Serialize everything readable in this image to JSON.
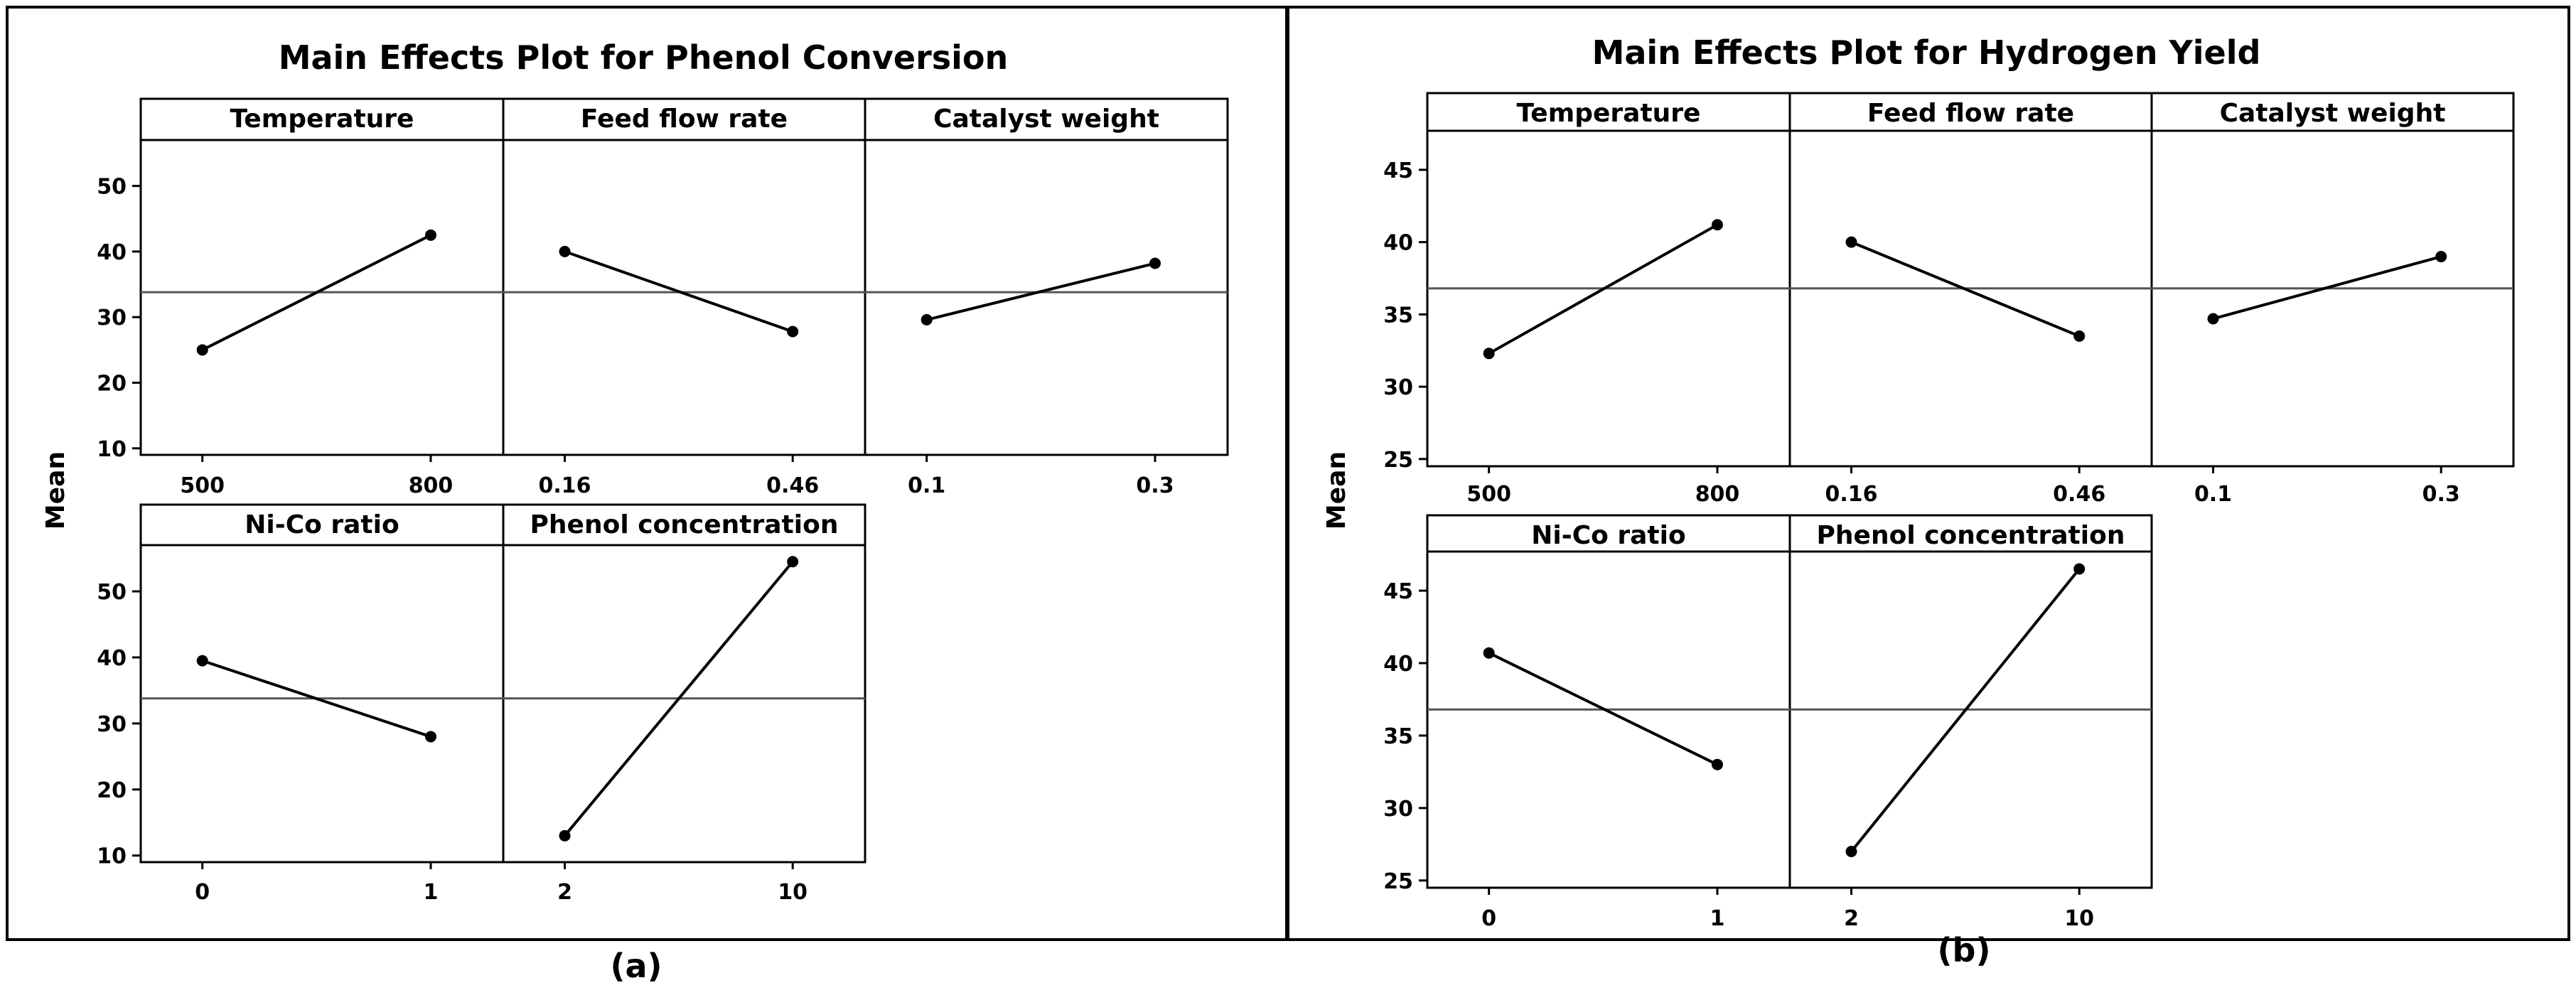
{
  "chart_data": [
    {
      "type": "line",
      "title": "Main Effects Plot for Phenol Conversion",
      "ylabel": "Mean",
      "caption": "(a)",
      "ylim": [
        9,
        57
      ],
      "yticks": [
        10,
        20,
        30,
        40,
        50
      ],
      "overall_mean": 33.8,
      "panels": [
        {
          "title": "Temperature",
          "x_labels": [
            "500",
            "800"
          ],
          "values": [
            25.0,
            42.5
          ]
        },
        {
          "title": "Feed flow rate",
          "x_labels": [
            "0.16",
            "0.46"
          ],
          "values": [
            40.0,
            27.8
          ]
        },
        {
          "title": "Catalyst weight",
          "x_labels": [
            "0.1",
            "0.3"
          ],
          "values": [
            29.6,
            38.2
          ]
        },
        {
          "title": "Ni-Co ratio",
          "x_labels": [
            "0",
            "1"
          ],
          "values": [
            39.5,
            28.0
          ]
        },
        {
          "title": "Phenol concentration",
          "x_labels": [
            "2",
            "10"
          ],
          "values": [
            13.0,
            54.5
          ]
        }
      ]
    },
    {
      "type": "line",
      "title": "Main Effects Plot for Hydrogen Yield",
      "ylabel": "Mean",
      "caption": "(b)",
      "ylim": [
        24.5,
        47.7
      ],
      "yticks": [
        25,
        30,
        35,
        40,
        45
      ],
      "overall_mean": 36.8,
      "panels": [
        {
          "title": "Temperature",
          "x_labels": [
            "500",
            "800"
          ],
          "values": [
            32.3,
            41.2
          ]
        },
        {
          "title": "Feed flow rate",
          "x_labels": [
            "0.16",
            "0.46"
          ],
          "values": [
            40.0,
            33.5
          ]
        },
        {
          "title": "Catalyst weight",
          "x_labels": [
            "0.1",
            "0.3"
          ],
          "values": [
            34.7,
            39.0
          ]
        },
        {
          "title": "Ni-Co ratio",
          "x_labels": [
            "0",
            "1"
          ],
          "values": [
            40.7,
            33.0
          ]
        },
        {
          "title": "Phenol concentration",
          "x_labels": [
            "2",
            "10"
          ],
          "values": [
            27.0,
            46.5
          ]
        }
      ]
    }
  ]
}
